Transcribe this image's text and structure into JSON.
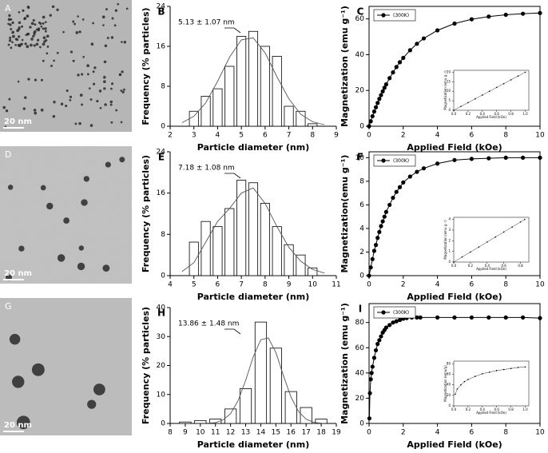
{
  "images": [
    {
      "label": "A",
      "scale_bar": "20 nm"
    },
    {
      "label": "D",
      "scale_bar": "20 nm"
    },
    {
      "label": "G",
      "scale_bar": "20 nm"
    }
  ],
  "chart_data": [
    {
      "type": "histogram",
      "label": "B",
      "xlabel": "Particle diameter (nm)",
      "ylabel": "Frequency (% particles)",
      "annotation": "5.13 ± 1.07 nm",
      "color": "#ffffff",
      "bins": [
        2.75,
        3.25,
        3.75,
        4.25,
        4.75,
        5.25,
        5.75,
        6.25,
        6.75,
        7.25,
        7.75,
        8.25
      ],
      "values": [
        3,
        6,
        7.5,
        12,
        18,
        19,
        16,
        14,
        4,
        3,
        0.5
      ],
      "fit": {
        "x": [
          2.5,
          3,
          3.5,
          4,
          4.5,
          5,
          5.5,
          6,
          6.5,
          7,
          7.5,
          8,
          8.5
        ],
        "values": [
          0.7,
          2,
          4.7,
          9,
          13.8,
          17.3,
          17.7,
          14.7,
          9.9,
          5.5,
          2.4,
          0.9,
          0.3
        ]
      },
      "xlim": [
        2,
        9
      ],
      "xticks": [
        2,
        3,
        4,
        5,
        6,
        7,
        8,
        9
      ],
      "ylim": [
        0,
        24
      ],
      "yticks": [
        0,
        8,
        16,
        24
      ]
    },
    {
      "type": "line",
      "label": "C",
      "xlabel": "Applied Field (kOe)",
      "ylabel": "Magnetization (emu g⁻¹)",
      "legend": "upper left",
      "markers": true,
      "series": [
        {
          "name": "(300K)",
          "color": "#000000",
          "x": [
            0,
            0.1,
            0.2,
            0.3,
            0.4,
            0.5,
            0.6,
            0.7,
            0.8,
            0.9,
            1,
            1.2,
            1.4,
            1.6,
            1.8,
            2,
            2.4,
            2.8,
            3.2,
            4,
            5,
            6,
            7,
            8,
            9,
            10
          ],
          "values": [
            0,
            2.8,
            5.6,
            8.2,
            10.6,
            13,
            15.3,
            17.4,
            19.5,
            21.5,
            23.4,
            26.9,
            30.1,
            33.1,
            35.8,
            38.2,
            42.5,
            46.1,
            49.1,
            53.6,
            57.4,
            59.8,
            61.3,
            62.3,
            62.9,
            63.3
          ]
        }
      ],
      "xlim": [
        0,
        10
      ],
      "xticks": [
        0,
        2,
        4,
        6,
        8,
        10
      ],
      "ylim": [
        0,
        67
      ],
      "yticks": [
        0,
        20,
        40,
        60
      ]
    },
    {
      "type": "line",
      "inset": true,
      "xlabel": "Applied Field (kOe)",
      "ylabel": "Magnetization (emu g⁻¹)",
      "markers": true,
      "series": [
        {
          "color": "#000000",
          "x": [
            0,
            0.1,
            0.2,
            0.3,
            0.4,
            0.5,
            0.6,
            0.7,
            0.8,
            0.9,
            1
          ],
          "values": [
            0,
            2,
            4,
            6,
            8,
            10,
            12,
            14,
            16,
            18,
            20
          ]
        }
      ],
      "xlim": [
        0,
        1.05
      ],
      "xticks": [
        {
          "value": 0,
          "label": "0.0"
        },
        0.2,
        0.4,
        0.6,
        0.8,
        {
          "value": 1,
          "label": "1.0"
        }
      ],
      "ylim": [
        0,
        21
      ],
      "yticks": [
        0,
        5,
        10,
        15,
        20
      ]
    },
    {
      "type": "histogram",
      "label": "E",
      "xlabel": "Particle diameter (nm)",
      "ylabel": "Frequency (% particles)",
      "annotation": "7.18 ± 1.08 nm",
      "color": "#ffffff",
      "bins": [
        4.75,
        5.25,
        5.75,
        6.25,
        6.75,
        7.25,
        7.75,
        8.25,
        8.75,
        9.25,
        9.75,
        10.25
      ],
      "values": [
        6.5,
        10.5,
        9.5,
        13,
        18.5,
        18,
        14,
        9.5,
        6,
        4,
        1.5
      ],
      "fit": {
        "x": [
          4.5,
          5,
          5.5,
          6,
          6.5,
          7,
          7.5,
          8,
          8.5,
          9,
          9.5,
          10,
          10.5
        ],
        "values": [
          0.8,
          2.5,
          6.5,
          10.5,
          13,
          16,
          17,
          14,
          9.5,
          5.5,
          2.8,
          1.2,
          0.5
        ]
      },
      "xlim": [
        4,
        11
      ],
      "xticks": [
        4,
        5,
        6,
        7,
        8,
        9,
        10,
        11
      ],
      "ylim": [
        0,
        24
      ],
      "yticks": [
        0,
        8,
        16,
        24
      ]
    },
    {
      "type": "line",
      "label": "F",
      "xlabel": "Applied Field (kOe)",
      "ylabel": "Magnetization(emu g⁻¹)",
      "legend": "upper left",
      "markers": true,
      "series": [
        {
          "name": "(300K)",
          "color": "#000000",
          "x": [
            0,
            0.1,
            0.2,
            0.3,
            0.4,
            0.5,
            0.6,
            0.7,
            0.8,
            0.9,
            1,
            1.2,
            1.4,
            1.6,
            1.8,
            2,
            2.4,
            2.8,
            3.2,
            4,
            5,
            6,
            7,
            8,
            9,
            10
          ],
          "values": [
            0,
            0.7,
            1.4,
            2.1,
            2.6,
            3.2,
            3.7,
            4.2,
            4.6,
            5,
            5.4,
            6,
            6.6,
            7.1,
            7.5,
            7.9,
            8.4,
            8.8,
            9.1,
            9.5,
            9.8,
            9.9,
            9.95,
            10,
            10,
            10
          ]
        }
      ],
      "xlim": [
        0,
        10
      ],
      "xticks": [
        0,
        2,
        4,
        6,
        8,
        10
      ],
      "ylim": [
        0,
        10.5
      ],
      "yticks": [
        0,
        2,
        4,
        6,
        8,
        10
      ]
    },
    {
      "type": "line",
      "inset": true,
      "xlabel": "Applied Field (kOe)",
      "ylabel": "Magnetization (emu g⁻¹)",
      "markers": true,
      "series": [
        {
          "color": "#000000",
          "x": [
            0,
            0.1,
            0.2,
            0.3,
            0.4,
            0.5,
            0.6,
            0.7,
            0.8,
            0.85
          ],
          "values": [
            0,
            0.47,
            0.94,
            1.41,
            1.88,
            2.35,
            2.82,
            3.29,
            3.76,
            4
          ]
        }
      ],
      "xlim": [
        0,
        0.9
      ],
      "xticks": [
        {
          "value": 0,
          "label": "0.0"
        },
        0.2,
        0.4,
        0.6,
        0.8
      ],
      "ylim": [
        0,
        4.2
      ],
      "yticks": [
        0,
        1,
        2,
        3,
        4
      ]
    },
    {
      "type": "histogram",
      "label": "H",
      "xlabel": "Particle diameter (nm)",
      "ylabel": "Frequency (% particles)",
      "annotation": "13.86 ± 1.48 nm",
      "color": "#ffffff",
      "bins": [
        8.5,
        9.5,
        10.5,
        11.5,
        12.5,
        13.5,
        14.5,
        15.5,
        16.5,
        17.5,
        18.5
      ],
      "values": [
        0.5,
        1,
        1.5,
        5,
        12,
        35,
        26,
        11,
        5.5,
        1.5
      ],
      "fit": {
        "x": [
          10.5,
          11,
          11.5,
          12,
          12.5,
          13,
          13.5,
          14,
          14.5,
          15,
          15.5,
          16,
          16.5,
          17,
          17.5,
          18
        ],
        "values": [
          0.1,
          0.3,
          1.2,
          3.4,
          7.9,
          14.9,
          23,
          28.9,
          29.5,
          24.5,
          16.5,
          9.1,
          4.1,
          1.5,
          0.4,
          0.1
        ]
      },
      "xlim": [
        8,
        19
      ],
      "xticks": [
        8,
        9,
        10,
        11,
        12,
        13,
        14,
        15,
        16,
        17,
        18,
        19
      ],
      "ylim": [
        0,
        40
      ],
      "yticks": [
        0,
        10,
        20,
        30,
        40
      ]
    },
    {
      "type": "line",
      "label": "I",
      "xlabel": "Applied Field (kOe)",
      "ylabel": "Magnetization (emu g⁻¹)",
      "legend": "upper left",
      "markers": true,
      "series": [
        {
          "name": "(300K)",
          "color": "#000000",
          "x": [
            0.02,
            0.05,
            0.1,
            0.15,
            0.2,
            0.3,
            0.4,
            0.5,
            0.6,
            0.7,
            0.8,
            0.9,
            1,
            1.2,
            1.4,
            1.6,
            1.8,
            2,
            2.2,
            2.5,
            2.8,
            3,
            4,
            5,
            6,
            7,
            8,
            9,
            10
          ],
          "values": [
            4,
            24,
            35,
            40,
            45,
            52,
            58,
            63,
            66,
            69,
            72,
            74,
            76,
            78,
            80,
            81,
            82,
            83,
            83.5,
            84,
            84,
            84,
            84,
            84,
            84,
            84,
            84,
            84,
            83.5
          ]
        }
      ],
      "xlim": [
        0,
        10
      ],
      "xticks": [
        0,
        2,
        4,
        6,
        8,
        10
      ],
      "ylim": [
        0,
        95
      ],
      "yticks": [
        0,
        20,
        40,
        60,
        80
      ]
    },
    {
      "type": "line",
      "inset": true,
      "xlabel": "Applied Field (kOe)",
      "ylabel": "Magnetization (emu/g)",
      "markers": true,
      "series": [
        {
          "color": "#000000",
          "x": [
            0.02,
            0.05,
            0.1,
            0.15,
            0.2,
            0.3,
            0.4,
            0.5,
            0.6,
            0.7,
            0.8,
            0.9,
            1
          ],
          "values": [
            22,
            32,
            40,
            46,
            50,
            56,
            61,
            64,
            67,
            69,
            71,
            73,
            74
          ]
        }
      ],
      "xlim": [
        0,
        1.05
      ],
      "xticks": [
        {
          "value": 0,
          "label": "0.0"
        },
        0.2,
        0.4,
        0.6,
        0.8,
        {
          "value": 1,
          "label": "1.0"
        }
      ],
      "ylim": [
        0,
        85
      ],
      "yticks": [
        0,
        20,
        40,
        60,
        80
      ]
    }
  ]
}
